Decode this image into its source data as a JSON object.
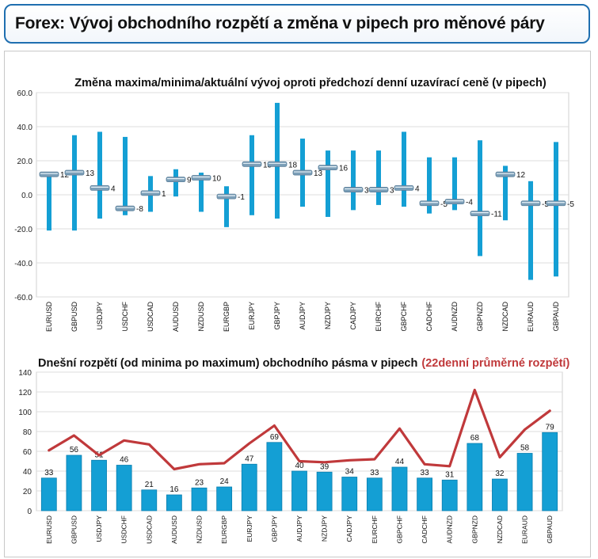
{
  "header": {
    "title": "Forex: Vývoj obchodního rozpětí a změna v pipech pro měnové páry"
  },
  "colors": {
    "bar": "#149fd4",
    "bar_dark": "#0b7fb0",
    "line": "#c0393b",
    "highlight": "#c0393b",
    "marker": "#7c9fb8"
  },
  "chart_data": [
    {
      "type": "bar",
      "title": "Změna maxima/minima/aktuální vývoj oproti předchozí denní uzavírací ceně (v pipech)",
      "categories": [
        "EURUSD",
        "GBPUSD",
        "USDJPY",
        "USDCHF",
        "USDCAD",
        "AUDUSD",
        "NZDUSD",
        "EURGBP",
        "EURJPY",
        "GBPJPY",
        "AUDJPY",
        "NZDJPY",
        "CADJPY",
        "EURCHF",
        "GBPCHF",
        "CADCHF",
        "AUDNZD",
        "GBPNZD",
        "NZDCAD",
        "EURAUD",
        "GBPAUD"
      ],
      "high": [
        11,
        35,
        37,
        34,
        11,
        15,
        13,
        5,
        35,
        54,
        33,
        26,
        26,
        26,
        37,
        22,
        22,
        32,
        17,
        8,
        31
      ],
      "low": [
        -21,
        -21,
        -14,
        -12,
        -10,
        -1,
        -10,
        -19,
        -12,
        -14,
        -7,
        -13,
        -9,
        -6,
        -7,
        -11,
        -9,
        -36,
        -15,
        -50,
        -48
      ],
      "current": [
        12,
        13,
        4,
        -8,
        1,
        9,
        10,
        -1,
        18,
        18,
        13,
        16,
        3,
        3,
        4,
        -5,
        -4,
        -11,
        12,
        -5,
        -5
      ],
      "ylim": [
        -60,
        60
      ],
      "yticks": [
        "60.0",
        "40.0",
        "20.0",
        "0.0",
        "-20.0",
        "-40.0",
        "-60.0"
      ],
      "grid": true,
      "legend": "none"
    },
    {
      "type": "bar",
      "title": "Dnešní rozpětí (od minima po maximum) obchodního pásma v pipech",
      "title_highlight": "(22denní průměrné rozpětí)",
      "categories": [
        "EURUSD",
        "GBPUSD",
        "USDJPY",
        "USDCHF",
        "USDCAD",
        "AUDUSD",
        "NZDUSD",
        "EURGBP",
        "EURJPY",
        "GBPJPY",
        "AUDJPY",
        "NZDJPY",
        "CADJPY",
        "EURCHF",
        "GBPCHF",
        "CADCHF",
        "AUDNZD",
        "GBPNZD",
        "NZDCAD",
        "EURAUD",
        "GBPAUD"
      ],
      "values": [
        33,
        56,
        51,
        46,
        21,
        16,
        23,
        24,
        47,
        69,
        40,
        39,
        34,
        33,
        44,
        33,
        31,
        68,
        32,
        58,
        79
      ],
      "avg_line": [
        61,
        76,
        56,
        71,
        67,
        42,
        47,
        48,
        68,
        86,
        50,
        49,
        51,
        52,
        83,
        47,
        45,
        122,
        54,
        82,
        101
      ],
      "ylim": [
        0,
        140
      ],
      "yticks": [
        "140",
        "120",
        "100",
        "80",
        "60",
        "40",
        "20",
        "0"
      ],
      "grid": true,
      "legend": "none"
    }
  ]
}
